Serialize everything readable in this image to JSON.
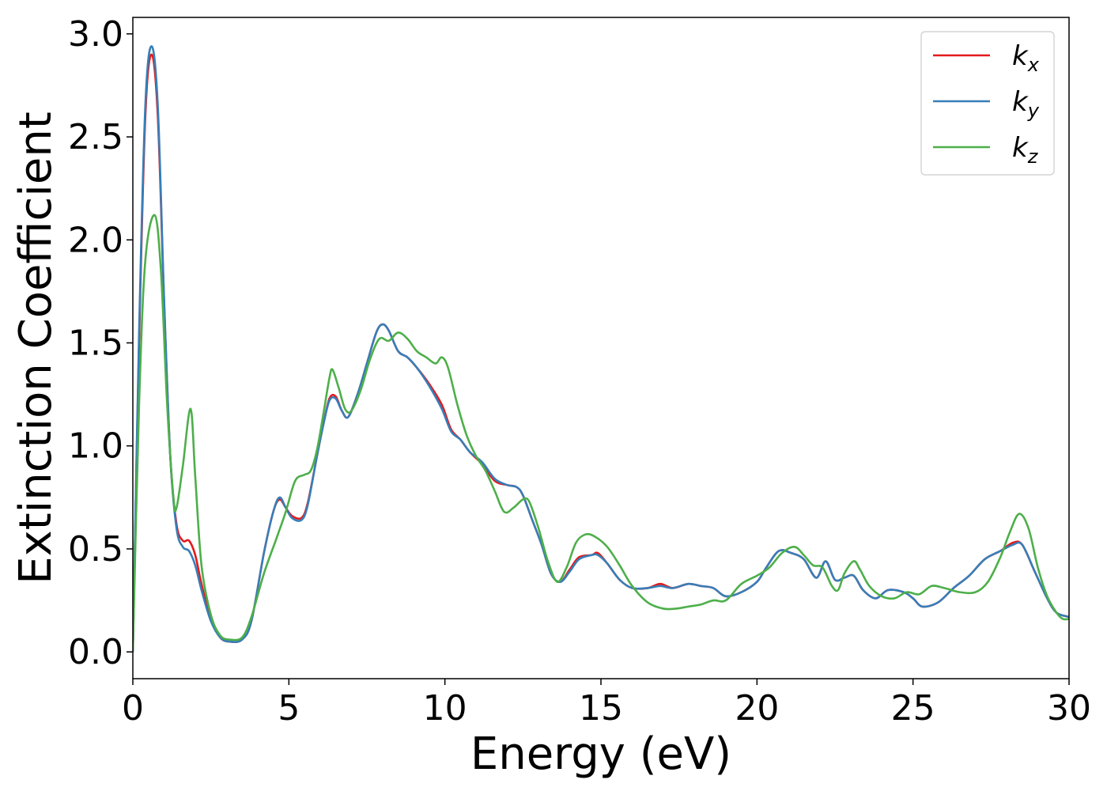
{
  "chart_data": {
    "type": "line",
    "xlabel": "Energy (eV)",
    "ylabel": "Extinction Coefficient",
    "xlim": [
      0,
      30
    ],
    "ylim": [
      -0.13,
      3.08
    ],
    "xticks": [
      0,
      5,
      10,
      15,
      20,
      25,
      30
    ],
    "xtick_labels": [
      "0",
      "5",
      "10",
      "15",
      "20",
      "25",
      "30"
    ],
    "yticks": [
      0.0,
      0.5,
      1.0,
      1.5,
      2.0,
      2.5,
      3.0
    ],
    "ytick_labels": [
      "0.0",
      "0.5",
      "1.0",
      "1.5",
      "2.0",
      "2.5",
      "3.0"
    ],
    "grid": false,
    "legend_position": "top-right",
    "series": [
      {
        "name": "k",
        "subscript": "x",
        "color": "#e41a1c",
        "points": [
          [
            0,
            0
          ],
          [
            0.2,
            1.5
          ],
          [
            0.4,
            2.6
          ],
          [
            0.6,
            2.9
          ],
          [
            0.8,
            2.6
          ],
          [
            1.0,
            1.7
          ],
          [
            1.2,
            0.95
          ],
          [
            1.4,
            0.62
          ],
          [
            1.6,
            0.54
          ],
          [
            1.8,
            0.54
          ],
          [
            2.0,
            0.47
          ],
          [
            2.2,
            0.33
          ],
          [
            2.5,
            0.16
          ],
          [
            2.8,
            0.07
          ],
          [
            3.1,
            0.05
          ],
          [
            3.5,
            0.06
          ],
          [
            3.8,
            0.15
          ],
          [
            4.2,
            0.48
          ],
          [
            4.5,
            0.68
          ],
          [
            4.7,
            0.74
          ],
          [
            4.9,
            0.7
          ],
          [
            5.1,
            0.66
          ],
          [
            5.4,
            0.65
          ],
          [
            5.6,
            0.72
          ],
          [
            5.9,
            0.95
          ],
          [
            6.1,
            1.1
          ],
          [
            6.3,
            1.23
          ],
          [
            6.5,
            1.24
          ],
          [
            6.7,
            1.17
          ],
          [
            6.9,
            1.14
          ],
          [
            7.2,
            1.25
          ],
          [
            7.5,
            1.4
          ],
          [
            7.8,
            1.55
          ],
          [
            8.0,
            1.59
          ],
          [
            8.2,
            1.56
          ],
          [
            8.5,
            1.46
          ],
          [
            8.8,
            1.43
          ],
          [
            9.1,
            1.38
          ],
          [
            9.5,
            1.3
          ],
          [
            9.9,
            1.2
          ],
          [
            10.2,
            1.08
          ],
          [
            10.5,
            1.03
          ],
          [
            10.8,
            0.97
          ],
          [
            11.2,
            0.91
          ],
          [
            11.6,
            0.83
          ],
          [
            12.0,
            0.81
          ],
          [
            12.3,
            0.8
          ],
          [
            12.5,
            0.76
          ],
          [
            12.8,
            0.64
          ],
          [
            13.1,
            0.52
          ],
          [
            13.4,
            0.38
          ],
          [
            13.7,
            0.34
          ],
          [
            14.0,
            0.4
          ],
          [
            14.3,
            0.46
          ],
          [
            14.7,
            0.47
          ],
          [
            14.9,
            0.48
          ],
          [
            15.2,
            0.43
          ],
          [
            15.6,
            0.35
          ],
          [
            16.0,
            0.31
          ],
          [
            16.5,
            0.31
          ],
          [
            16.9,
            0.33
          ],
          [
            17.3,
            0.31
          ],
          [
            17.8,
            0.33
          ],
          [
            18.2,
            0.32
          ],
          [
            18.6,
            0.31
          ],
          [
            19.0,
            0.27
          ],
          [
            19.5,
            0.29
          ],
          [
            20.0,
            0.34
          ],
          [
            20.3,
            0.41
          ],
          [
            20.7,
            0.49
          ],
          [
            21.1,
            0.48
          ],
          [
            21.5,
            0.45
          ],
          [
            21.9,
            0.36
          ],
          [
            22.2,
            0.44
          ],
          [
            22.5,
            0.35
          ],
          [
            22.8,
            0.36
          ],
          [
            23.1,
            0.37
          ],
          [
            23.4,
            0.3
          ],
          [
            23.8,
            0.26
          ],
          [
            24.2,
            0.3
          ],
          [
            24.7,
            0.29
          ],
          [
            25.0,
            0.26
          ],
          [
            25.3,
            0.22
          ],
          [
            25.8,
            0.24
          ],
          [
            26.3,
            0.31
          ],
          [
            26.8,
            0.37
          ],
          [
            27.3,
            0.45
          ],
          [
            27.8,
            0.49
          ],
          [
            28.2,
            0.53
          ],
          [
            28.5,
            0.52
          ],
          [
            28.9,
            0.39
          ],
          [
            29.3,
            0.26
          ],
          [
            29.6,
            0.19
          ],
          [
            30.0,
            0.17
          ]
        ]
      },
      {
        "name": "k",
        "subscript": "y",
        "color": "#377eb8",
        "points": [
          [
            0,
            0
          ],
          [
            0.2,
            1.55
          ],
          [
            0.4,
            2.65
          ],
          [
            0.6,
            2.94
          ],
          [
            0.8,
            2.65
          ],
          [
            1.0,
            1.72
          ],
          [
            1.2,
            0.95
          ],
          [
            1.4,
            0.6
          ],
          [
            1.6,
            0.51
          ],
          [
            1.8,
            0.49
          ],
          [
            2.0,
            0.42
          ],
          [
            2.2,
            0.3
          ],
          [
            2.5,
            0.15
          ],
          [
            2.8,
            0.07
          ],
          [
            3.1,
            0.05
          ],
          [
            3.5,
            0.06
          ],
          [
            3.8,
            0.15
          ],
          [
            4.2,
            0.48
          ],
          [
            4.5,
            0.68
          ],
          [
            4.7,
            0.75
          ],
          [
            4.9,
            0.7
          ],
          [
            5.1,
            0.65
          ],
          [
            5.4,
            0.64
          ],
          [
            5.6,
            0.71
          ],
          [
            5.9,
            0.95
          ],
          [
            6.1,
            1.1
          ],
          [
            6.3,
            1.22
          ],
          [
            6.5,
            1.23
          ],
          [
            6.7,
            1.17
          ],
          [
            6.9,
            1.14
          ],
          [
            7.2,
            1.25
          ],
          [
            7.5,
            1.4
          ],
          [
            7.8,
            1.55
          ],
          [
            8.0,
            1.59
          ],
          [
            8.2,
            1.56
          ],
          [
            8.5,
            1.46
          ],
          [
            8.8,
            1.43
          ],
          [
            9.1,
            1.38
          ],
          [
            9.5,
            1.29
          ],
          [
            9.9,
            1.18
          ],
          [
            10.2,
            1.07
          ],
          [
            10.5,
            1.03
          ],
          [
            10.8,
            0.97
          ],
          [
            11.2,
            0.92
          ],
          [
            11.6,
            0.84
          ],
          [
            12.0,
            0.81
          ],
          [
            12.3,
            0.8
          ],
          [
            12.5,
            0.76
          ],
          [
            12.8,
            0.64
          ],
          [
            13.1,
            0.52
          ],
          [
            13.4,
            0.38
          ],
          [
            13.7,
            0.34
          ],
          [
            14.0,
            0.39
          ],
          [
            14.3,
            0.45
          ],
          [
            14.7,
            0.47
          ],
          [
            14.9,
            0.47
          ],
          [
            15.2,
            0.43
          ],
          [
            15.6,
            0.35
          ],
          [
            16.0,
            0.31
          ],
          [
            16.5,
            0.31
          ],
          [
            16.9,
            0.32
          ],
          [
            17.3,
            0.31
          ],
          [
            17.8,
            0.33
          ],
          [
            18.2,
            0.32
          ],
          [
            18.6,
            0.31
          ],
          [
            19.0,
            0.27
          ],
          [
            19.5,
            0.29
          ],
          [
            20.0,
            0.34
          ],
          [
            20.3,
            0.41
          ],
          [
            20.7,
            0.49
          ],
          [
            21.1,
            0.48
          ],
          [
            21.5,
            0.45
          ],
          [
            21.9,
            0.36
          ],
          [
            22.2,
            0.44
          ],
          [
            22.5,
            0.35
          ],
          [
            22.8,
            0.36
          ],
          [
            23.1,
            0.37
          ],
          [
            23.4,
            0.3
          ],
          [
            23.8,
            0.26
          ],
          [
            24.2,
            0.3
          ],
          [
            24.7,
            0.29
          ],
          [
            25.0,
            0.26
          ],
          [
            25.3,
            0.22
          ],
          [
            25.8,
            0.24
          ],
          [
            26.3,
            0.31
          ],
          [
            26.8,
            0.37
          ],
          [
            27.3,
            0.45
          ],
          [
            27.8,
            0.49
          ],
          [
            28.2,
            0.52
          ],
          [
            28.5,
            0.52
          ],
          [
            28.9,
            0.39
          ],
          [
            29.3,
            0.26
          ],
          [
            29.6,
            0.19
          ],
          [
            30.0,
            0.17
          ]
        ]
      },
      {
        "name": "k",
        "subscript": "z",
        "color": "#4daf4a",
        "points": [
          [
            0,
            0
          ],
          [
            0.2,
            1.2
          ],
          [
            0.4,
            1.9
          ],
          [
            0.7,
            2.12
          ],
          [
            0.9,
            1.85
          ],
          [
            1.1,
            1.2
          ],
          [
            1.3,
            0.75
          ],
          [
            1.4,
            0.7
          ],
          [
            1.6,
            0.9
          ],
          [
            1.85,
            1.18
          ],
          [
            2.0,
            0.85
          ],
          [
            2.2,
            0.42
          ],
          [
            2.5,
            0.18
          ],
          [
            2.8,
            0.08
          ],
          [
            3.1,
            0.06
          ],
          [
            3.5,
            0.07
          ],
          [
            3.8,
            0.17
          ],
          [
            4.2,
            0.38
          ],
          [
            4.6,
            0.55
          ],
          [
            4.9,
            0.68
          ],
          [
            5.2,
            0.83
          ],
          [
            5.5,
            0.86
          ],
          [
            5.7,
            0.88
          ],
          [
            5.9,
            0.98
          ],
          [
            6.1,
            1.15
          ],
          [
            6.3,
            1.33
          ],
          [
            6.4,
            1.37
          ],
          [
            6.6,
            1.28
          ],
          [
            6.8,
            1.18
          ],
          [
            7.0,
            1.17
          ],
          [
            7.3,
            1.27
          ],
          [
            7.6,
            1.42
          ],
          [
            7.9,
            1.52
          ],
          [
            8.2,
            1.51
          ],
          [
            8.5,
            1.55
          ],
          [
            8.8,
            1.52
          ],
          [
            9.1,
            1.46
          ],
          [
            9.4,
            1.43
          ],
          [
            9.7,
            1.4
          ],
          [
            9.9,
            1.43
          ],
          [
            10.1,
            1.38
          ],
          [
            10.4,
            1.2
          ],
          [
            10.7,
            1.05
          ],
          [
            11.0,
            0.95
          ],
          [
            11.3,
            0.88
          ],
          [
            11.6,
            0.78
          ],
          [
            11.9,
            0.68
          ],
          [
            12.2,
            0.7
          ],
          [
            12.5,
            0.74
          ],
          [
            12.7,
            0.73
          ],
          [
            13.0,
            0.6
          ],
          [
            13.3,
            0.44
          ],
          [
            13.6,
            0.34
          ],
          [
            13.9,
            0.41
          ],
          [
            14.2,
            0.53
          ],
          [
            14.5,
            0.57
          ],
          [
            14.8,
            0.56
          ],
          [
            15.2,
            0.51
          ],
          [
            15.6,
            0.42
          ],
          [
            16.0,
            0.32
          ],
          [
            16.5,
            0.24
          ],
          [
            17.0,
            0.21
          ],
          [
            17.4,
            0.21
          ],
          [
            17.8,
            0.22
          ],
          [
            18.2,
            0.23
          ],
          [
            18.6,
            0.25
          ],
          [
            19.0,
            0.25
          ],
          [
            19.5,
            0.33
          ],
          [
            20.0,
            0.37
          ],
          [
            20.4,
            0.41
          ],
          [
            20.8,
            0.48
          ],
          [
            21.2,
            0.51
          ],
          [
            21.5,
            0.47
          ],
          [
            21.8,
            0.42
          ],
          [
            22.1,
            0.41
          ],
          [
            22.4,
            0.32
          ],
          [
            22.6,
            0.3
          ],
          [
            22.8,
            0.38
          ],
          [
            23.1,
            0.44
          ],
          [
            23.3,
            0.4
          ],
          [
            23.6,
            0.32
          ],
          [
            24.0,
            0.27
          ],
          [
            24.4,
            0.26
          ],
          [
            24.8,
            0.29
          ],
          [
            25.2,
            0.28
          ],
          [
            25.6,
            0.32
          ],
          [
            26.0,
            0.31
          ],
          [
            26.5,
            0.29
          ],
          [
            27.0,
            0.29
          ],
          [
            27.4,
            0.34
          ],
          [
            27.8,
            0.46
          ],
          [
            28.1,
            0.58
          ],
          [
            28.4,
            0.67
          ],
          [
            28.7,
            0.6
          ],
          [
            29.0,
            0.41
          ],
          [
            29.3,
            0.27
          ],
          [
            29.6,
            0.19
          ],
          [
            29.8,
            0.16
          ],
          [
            30.0,
            0.16
          ]
        ]
      }
    ]
  }
}
